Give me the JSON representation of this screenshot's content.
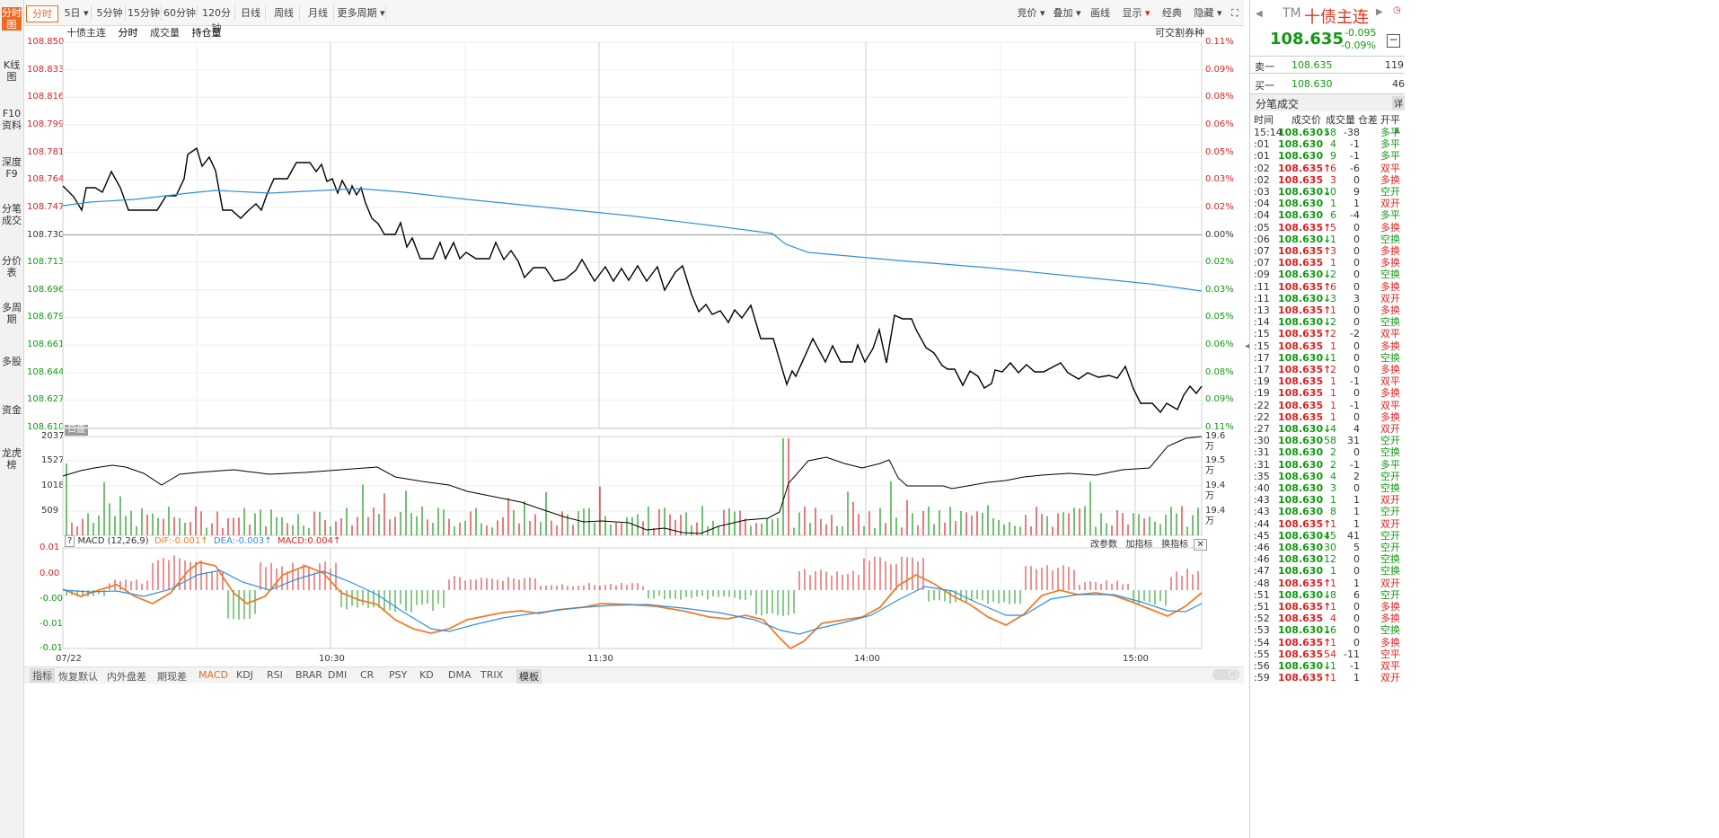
{
  "side_tabs": [
    "分时图",
    "K线图",
    "F10资料",
    "深度F9",
    "分笔成交",
    "分价表",
    "多周期",
    "多股",
    "资金",
    "龙虎榜"
  ],
  "period_buttons": [
    "分时",
    "5日",
    "5分钟",
    "15分钟",
    "60分钟",
    "120分钟",
    "日线",
    "周线",
    "月线",
    "更多周期"
  ],
  "toolbar_right": [
    "竞价",
    "叠加",
    "画线",
    "显示",
    "经典",
    "隐藏"
  ],
  "chart_title": {
    "name": "十债主连",
    "mode": "分时",
    "vol": "成交量",
    "oi": "持仓量",
    "right_note": "可交割券种"
  },
  "price_axis": {
    "left": [
      "108.850",
      "108.833",
      "108.816",
      "108.799",
      "108.781",
      "108.764",
      "108.747",
      "108.730",
      "108.713",
      "108.696",
      "108.679",
      "108.661",
      "108.644",
      "108.627",
      "108.610"
    ],
    "right": [
      "0.11%",
      "0.09%",
      "0.08%",
      "0.06%",
      "0.05%",
      "0.03%",
      "0.02%",
      "0.00%",
      "0.02%",
      "0.03%",
      "0.05%",
      "0.06%",
      "0.08%",
      "0.09%",
      "0.11%"
    ]
  },
  "session_label": "日盘",
  "volume_axis": {
    "left": [
      "2037",
      "1527",
      "1018",
      "509"
    ],
    "right": [
      "19.6万",
      "19.5万",
      "19.4万",
      "19.4万"
    ]
  },
  "macd": {
    "title": "MACD (12,26,9)",
    "dif": "DIF:-0.001↑",
    "dea": "DEA:-0.003↑",
    "macd": "MACD:0.004↑",
    "axis": [
      "0.01",
      "0.00",
      "-0.00",
      "-0.01",
      "-0.01"
    ],
    "buttons": [
      "改参数",
      "加指标",
      "换指标"
    ]
  },
  "time_axis": [
    "07/22",
    "10:30",
    "11:30",
    "14:00",
    "15:00"
  ],
  "bottom_tabs": [
    "指标",
    "恢复默认",
    "内外盘差",
    "期现差",
    "MACD",
    "KDJ",
    "RSI",
    "BRAR",
    "DMI",
    "CR",
    "PSY",
    "KD",
    "DMA",
    "TRIX",
    "模板"
  ],
  "quote": {
    "code": "TM",
    "name": "十债主连",
    "price": "108.635",
    "change": "-0.095",
    "pct": "-0.09%",
    "sell_label": "卖一",
    "sell_price": "108.635",
    "sell_vol": "119",
    "buy_label": "买一",
    "buy_price": "108.630",
    "buy_vol": "46"
  },
  "trades": {
    "title": "分笔成交",
    "detail": "详",
    "headers": [
      "时间",
      "成交价",
      "成交量",
      "仓差",
      "开平"
    ],
    "rows": [
      [
        "15:14",
        "108.630↓",
        "58",
        "-38",
        "多平"
      ],
      [
        ":01",
        "108.630",
        "4",
        "-1",
        "多平"
      ],
      [
        ":01",
        "108.630",
        "9",
        "-1",
        "多平"
      ],
      [
        ":02",
        "108.635↑",
        "6",
        "-6",
        "双平"
      ],
      [
        ":02",
        "108.635",
        "3",
        "0",
        "多换"
      ],
      [
        ":03",
        "108.630↓",
        "10",
        "9",
        "空开"
      ],
      [
        ":04",
        "108.630",
        "1",
        "1",
        "双开"
      ],
      [
        ":04",
        "108.630",
        "6",
        "-4",
        "多平"
      ],
      [
        ":05",
        "108.635↑",
        "5",
        "0",
        "多换"
      ],
      [
        ":06",
        "108.630↓",
        "1",
        "0",
        "空换"
      ],
      [
        ":07",
        "108.635↑",
        "3",
        "0",
        "多换"
      ],
      [
        ":07",
        "108.635",
        "1",
        "0",
        "多换"
      ],
      [
        ":09",
        "108.630↓",
        "2",
        "0",
        "空换"
      ],
      [
        ":11",
        "108.635↑",
        "6",
        "0",
        "多换"
      ],
      [
        ":11",
        "108.630↓",
        "3",
        "3",
        "双开"
      ],
      [
        ":13",
        "108.635↑",
        "1",
        "0",
        "多换"
      ],
      [
        ":14",
        "108.630↓",
        "2",
        "0",
        "空换"
      ],
      [
        ":15",
        "108.635↑",
        "2",
        "-2",
        "双平"
      ],
      [
        ":15",
        "108.635",
        "1",
        "0",
        "多换"
      ],
      [
        ":17",
        "108.630↓",
        "1",
        "0",
        "空换"
      ],
      [
        ":17",
        "108.635↑",
        "2",
        "0",
        "多换"
      ],
      [
        ":19",
        "108.635",
        "1",
        "-1",
        "双平"
      ],
      [
        ":19",
        "108.635",
        "1",
        "0",
        "多换"
      ],
      [
        ":22",
        "108.635",
        "1",
        "-1",
        "双平"
      ],
      [
        ":22",
        "108.635",
        "1",
        "0",
        "多换"
      ],
      [
        ":27",
        "108.630↓",
        "4",
        "4",
        "双开"
      ],
      [
        ":30",
        "108.630",
        "58",
        "31",
        "空开"
      ],
      [
        ":31",
        "108.630",
        "2",
        "0",
        "空换"
      ],
      [
        ":31",
        "108.630",
        "2",
        "-1",
        "多平"
      ],
      [
        ":35",
        "108.630",
        "4",
        "2",
        "空开"
      ],
      [
        ":40",
        "108.630",
        "3",
        "0",
        "空换"
      ],
      [
        ":43",
        "108.630",
        "1",
        "1",
        "双开"
      ],
      [
        ":43",
        "108.630",
        "8",
        "1",
        "空开"
      ],
      [
        ":44",
        "108.635↑",
        "1",
        "1",
        "双开"
      ],
      [
        ":45",
        "108.630↓",
        "45",
        "41",
        "空开"
      ],
      [
        ":46",
        "108.630",
        "30",
        "5",
        "空开"
      ],
      [
        ":46",
        "108.630",
        "12",
        "0",
        "空换"
      ],
      [
        ":47",
        "108.630",
        "1",
        "0",
        "空换"
      ],
      [
        ":48",
        "108.635↑",
        "1",
        "1",
        "双开"
      ],
      [
        ":51",
        "108.630↓",
        "8",
        "6",
        "空开"
      ],
      [
        ":51",
        "108.635↑",
        "1",
        "0",
        "多换"
      ],
      [
        ":52",
        "108.635",
        "4",
        "0",
        "多换"
      ],
      [
        ":53",
        "108.630↓",
        "16",
        "0",
        "空换"
      ],
      [
        ":54",
        "108.635↑",
        "1",
        "0",
        "多换"
      ],
      [
        ":55",
        "108.635",
        "54",
        "-11",
        "空平"
      ],
      [
        ":56",
        "108.630↓",
        "1",
        "-1",
        "双平"
      ],
      [
        ":59",
        "108.635↑",
        "1",
        "1",
        "双开"
      ]
    ]
  },
  "colors": {
    "up": "#e02020",
    "down": "#119911",
    "accent": "#f06a1f",
    "avg_line": "#2f8fdf",
    "price_line": "#000000"
  }
}
